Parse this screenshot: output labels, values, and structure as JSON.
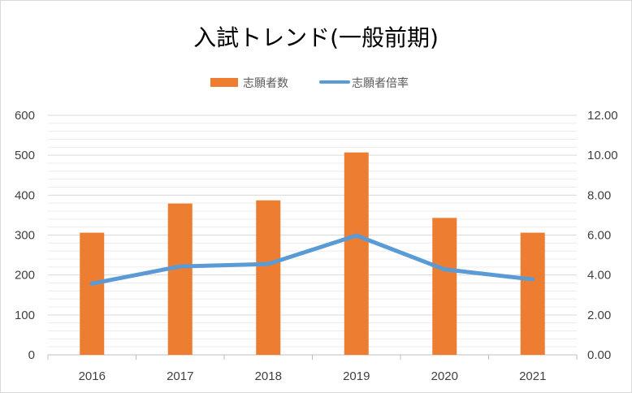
{
  "chart_data": {
    "type": "bar",
    "title": "入試トレンド(一般前期)",
    "categories": [
      "2016",
      "2017",
      "2018",
      "2019",
      "2020",
      "2021"
    ],
    "series": [
      {
        "name": "志願者数",
        "kind": "bar",
        "axis": "left",
        "color": "#ed7d31",
        "values": [
          306,
          379,
          387,
          507,
          343,
          306
        ]
      },
      {
        "name": "志願者倍率",
        "kind": "line",
        "axis": "right",
        "color": "#5b9bd5",
        "values": [
          3.57,
          4.43,
          4.55,
          5.98,
          4.28,
          3.78
        ]
      }
    ],
    "y_left": {
      "min": 0,
      "max": 600,
      "ticks": [
        "0",
        "100",
        "200",
        "300",
        "400",
        "500",
        "600"
      ]
    },
    "y_right": {
      "min": 0,
      "max": 12,
      "ticks": [
        "0.00",
        "2.00",
        "4.00",
        "6.00",
        "8.00",
        "10.00",
        "12.00"
      ]
    },
    "grid": true,
    "legend_position": "top"
  }
}
